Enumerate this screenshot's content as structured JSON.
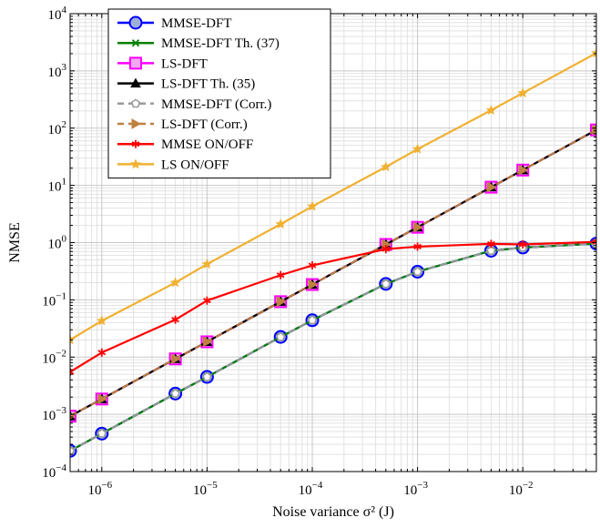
{
  "chart_data": {
    "type": "line",
    "xscale": "log",
    "yscale": "log",
    "xlim": [
      5e-07,
      0.05
    ],
    "ylim": [
      0.0001,
      10000
    ],
    "xlabel": "Noise variance σ² (J)",
    "ylabel": "NMSE",
    "grid": true,
    "legend_position": "top-left",
    "x": [
      5e-07,
      1e-06,
      5e-06,
      1e-05,
      5e-05,
      0.0001,
      0.0005,
      0.001,
      0.005,
      0.01,
      0.05
    ],
    "x_tick_labels": [
      {
        "value": 1e-06,
        "base": "10",
        "exp": "−6"
      },
      {
        "value": 1e-05,
        "base": "10",
        "exp": "−5"
      },
      {
        "value": 0.0001,
        "base": "10",
        "exp": "−4"
      },
      {
        "value": 0.001,
        "base": "10",
        "exp": "−3"
      },
      {
        "value": 0.01,
        "base": "10",
        "exp": "−2"
      }
    ],
    "y_tick_labels": [
      {
        "value": 0.0001,
        "base": "10",
        "exp": "−4"
      },
      {
        "value": 0.001,
        "base": "10",
        "exp": "−3"
      },
      {
        "value": 0.01,
        "base": "10",
        "exp": "−2"
      },
      {
        "value": 0.1,
        "base": "10",
        "exp": "−1"
      },
      {
        "value": 1,
        "base": "10",
        "exp": "0"
      },
      {
        "value": 10,
        "base": "10",
        "exp": "1"
      },
      {
        "value": 100,
        "base": "10",
        "exp": "2"
      },
      {
        "value": 1000,
        "base": "10",
        "exp": "3"
      },
      {
        "value": 10000,
        "base": "10",
        "exp": "4"
      }
    ],
    "series": [
      {
        "name": "MMSE-DFT",
        "color": "#0000ff",
        "marker": "circle",
        "dashed": false,
        "values": [
          0.00023,
          0.00046,
          0.0023,
          0.0045,
          0.0225,
          0.044,
          0.19,
          0.31,
          0.72,
          0.82,
          0.96
        ]
      },
      {
        "name": "MMSE-DFT Th. (37)",
        "color": "#008000",
        "marker": "x",
        "dashed": false,
        "values": [
          0.00023,
          0.00046,
          0.0023,
          0.0045,
          0.0225,
          0.044,
          0.19,
          0.31,
          0.72,
          0.82,
          0.96
        ]
      },
      {
        "name": "LS-DFT",
        "color": "#ff00ff",
        "marker": "square",
        "dashed": false,
        "values": [
          0.00093,
          0.00185,
          0.0093,
          0.0185,
          0.093,
          0.185,
          0.93,
          1.85,
          9.3,
          18.5,
          93
        ]
      },
      {
        "name": "LS-DFT Th. (35)",
        "color": "#000000",
        "marker": "triangle",
        "dashed": false,
        "values": [
          0.00093,
          0.00185,
          0.0093,
          0.0185,
          0.093,
          0.185,
          0.93,
          1.85,
          9.3,
          18.5,
          93
        ]
      },
      {
        "name": "MMSE-DFT (Corr.)",
        "color": "#999999",
        "marker": "pentagon",
        "dashed": true,
        "values": [
          0.00023,
          0.00046,
          0.0023,
          0.0045,
          0.0225,
          0.044,
          0.19,
          0.31,
          0.72,
          0.82,
          0.96
        ]
      },
      {
        "name": "LS-DFT (Corr.)",
        "color": "#bf8040",
        "marker": "triangle-right",
        "dashed": true,
        "values": [
          0.00093,
          0.00185,
          0.0093,
          0.0185,
          0.093,
          0.185,
          0.93,
          1.85,
          9.3,
          18.5,
          93
        ]
      },
      {
        "name": "MMSE ON/OFF",
        "color": "#ff0000",
        "marker": "asterisk",
        "dashed": false,
        "values": [
          0.0055,
          0.012,
          0.045,
          0.097,
          0.27,
          0.4,
          0.77,
          0.85,
          0.95,
          0.93,
          1.03
        ]
      },
      {
        "name": "LS ON/OFF",
        "color": "#f0b030",
        "marker": "star",
        "dashed": false,
        "values": [
          0.02,
          0.043,
          0.2,
          0.42,
          2.1,
          4.3,
          21,
          43,
          205,
          410,
          2050
        ]
      }
    ]
  }
}
